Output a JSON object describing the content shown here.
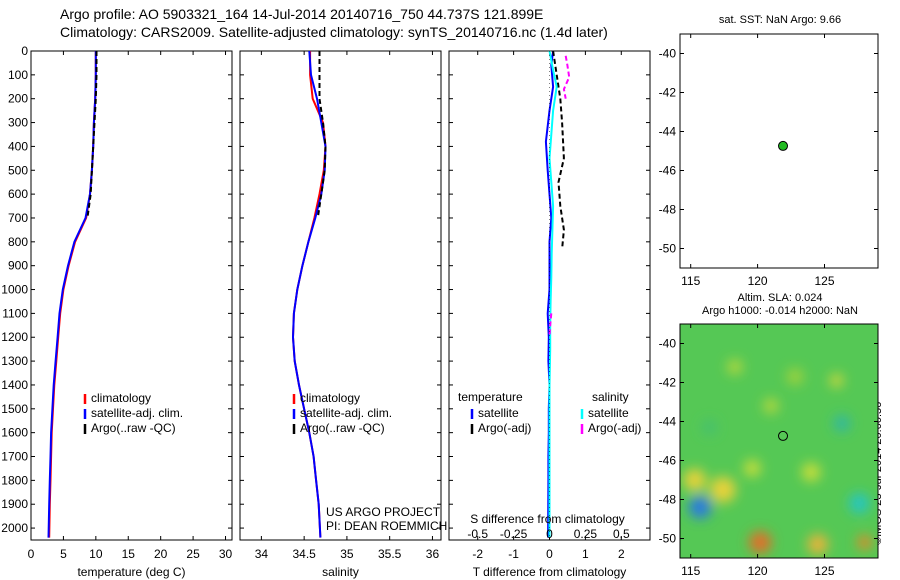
{
  "header": {
    "title1": "Argo profile: AO 5903321_164 14-Jul-2014 20140716_750 44.737S 121.899E",
    "title2": "Climatology: CARS2009. Satellite-adjusted climatology: synTS_20140716.nc (1.4d later)"
  },
  "credits": {
    "line1": "US ARGO PROJECT",
    "line2": "PI: DEAN ROEMMICH"
  },
  "stamp": "©IMOS 23-Jul-2014 20:00:56",
  "colors": {
    "climatology": "#ff0000",
    "satellite": "#0000ff",
    "argo": "#000000",
    "salinity_satellite": "#00ffff",
    "salinity_argo": "#ff00ff",
    "map_marker": "#22bb22"
  },
  "chart_data": [
    {
      "id": "temperature",
      "type": "line",
      "xlabel": "temperature (deg C)",
      "xlim": [
        0,
        31
      ],
      "xticks": [
        0,
        5,
        10,
        15,
        20,
        25,
        30
      ],
      "ylim": [
        2050,
        0
      ],
      "yticks": [
        0,
        100,
        200,
        300,
        400,
        500,
        600,
        700,
        800,
        900,
        1000,
        1100,
        1200,
        1300,
        1400,
        1500,
        1600,
        1700,
        1800,
        1900,
        2000
      ],
      "legend": [
        "climatology",
        "satellite-adj. clim.",
        "Argo(..raw -QC)"
      ],
      "series": [
        {
          "name": "climatology",
          "color": "#ff0000",
          "dash": false,
          "x": [
            10.0,
            10.0,
            9.9,
            9.7,
            9.6,
            9.4,
            9.1,
            8.5,
            6.8,
            5.8,
            5.0,
            4.5,
            4.2,
            3.9,
            3.6,
            3.4,
            3.2,
            3.1,
            3.0,
            2.9,
            2.8
          ],
          "y": [
            0,
            100,
            200,
            300,
            400,
            500,
            600,
            700,
            800,
            900,
            1000,
            1100,
            1200,
            1300,
            1400,
            1500,
            1600,
            1700,
            1800,
            1900,
            2040
          ]
        },
        {
          "name": "satellite-adj. clim.",
          "color": "#0000ff",
          "dash": false,
          "x": [
            10.0,
            10.0,
            9.9,
            9.7,
            9.6,
            9.4,
            9.1,
            8.4,
            6.7,
            5.7,
            4.9,
            4.4,
            4.1,
            3.8,
            3.5,
            3.3,
            3.1,
            3.0,
            2.9,
            2.8,
            2.7
          ],
          "y": [
            0,
            100,
            200,
            300,
            400,
            500,
            600,
            700,
            800,
            900,
            1000,
            1100,
            1200,
            1300,
            1400,
            1500,
            1600,
            1700,
            1800,
            1900,
            2040
          ]
        },
        {
          "name": "Argo(..raw -QC)",
          "color": "#000000",
          "dash": true,
          "x": [
            10.1,
            10.1,
            10.0,
            9.8,
            9.6,
            9.4,
            9.2,
            8.7
          ],
          "y": [
            0,
            100,
            200,
            300,
            400,
            500,
            600,
            700
          ]
        }
      ]
    },
    {
      "id": "salinity",
      "type": "line",
      "xlabel": "salinity",
      "xlim": [
        33.75,
        36.1
      ],
      "xticks": [
        34,
        34.5,
        35,
        35.5,
        36
      ],
      "ylim": [
        2050,
        0
      ],
      "legend": [
        "climatology",
        "satellite-adj. clim.",
        "Argo(..raw -QC)"
      ],
      "series": [
        {
          "name": "climatology",
          "color": "#ff0000",
          "dash": false,
          "x": [
            34.57,
            34.57,
            34.6,
            34.72,
            34.75,
            34.73,
            34.68,
            34.62,
            34.55,
            34.48,
            34.42,
            34.38,
            34.37,
            34.39,
            34.44,
            34.5,
            34.56,
            34.61,
            34.64,
            34.67,
            34.69
          ],
          "y": [
            0,
            100,
            200,
            300,
            400,
            500,
            600,
            700,
            800,
            900,
            1000,
            1100,
            1200,
            1300,
            1400,
            1500,
            1600,
            1700,
            1800,
            1900,
            2040
          ]
        },
        {
          "name": "satellite-adj. clim.",
          "color": "#0000ff",
          "dash": false,
          "x": [
            34.56,
            34.58,
            34.65,
            34.7,
            34.75,
            34.74,
            34.7,
            34.63,
            34.55,
            34.48,
            34.42,
            34.38,
            34.37,
            34.39,
            34.44,
            34.5,
            34.56,
            34.61,
            34.64,
            34.67,
            34.69
          ],
          "y": [
            0,
            100,
            200,
            300,
            400,
            500,
            600,
            700,
            800,
            900,
            1000,
            1100,
            1200,
            1300,
            1400,
            1500,
            1600,
            1700,
            1800,
            1900,
            2040
          ]
        },
        {
          "name": "Argo(..raw -QC)",
          "color": "#000000",
          "dash": true,
          "x": [
            34.68,
            34.68,
            34.68,
            34.72,
            34.75,
            34.74,
            34.7,
            34.66
          ],
          "y": [
            0,
            100,
            200,
            300,
            400,
            500,
            600,
            700
          ]
        }
      ]
    },
    {
      "id": "difference",
      "type": "line",
      "xlabel": "T difference from climatology",
      "xlabel_top": "S difference from climatology",
      "xlim": [
        -2.8,
        2.8
      ],
      "xticks": [
        -2,
        -1,
        0,
        1,
        2
      ],
      "top_ticks": [
        "-0.5",
        "-0.25",
        "0",
        "0.25",
        "0.5"
      ],
      "ylim": [
        2050,
        0
      ],
      "legend_groups": [
        {
          "title": "temperature",
          "items": [
            "satellite",
            "Argo(-adj)"
          ]
        },
        {
          "title": "salinity",
          "items": [
            "satellite",
            "Argo(-adj)"
          ]
        }
      ],
      "series": [
        {
          "name": "temperature satellite",
          "color": "#0000ff",
          "dash": false,
          "x": [
            0.1,
            0.05,
            0.1,
            0.0,
            -0.1,
            -0.05,
            0.0,
            0.05,
            0.0,
            0.0,
            0.0,
            -0.05,
            -0.02,
            -0.03,
            0.0,
            -0.02,
            -0.02,
            -0.03,
            -0.03,
            -0.04
          ],
          "y": [
            0,
            60,
            150,
            250,
            380,
            500,
            600,
            700,
            800,
            900,
            1000,
            1100,
            1200,
            1300,
            1400,
            1500,
            1600,
            1700,
            1800,
            2040
          ]
        },
        {
          "name": "temperature Argo(-adj)",
          "color": "#000000",
          "dash": true,
          "x": [
            0.1,
            0.2,
            0.3,
            0.35,
            0.4,
            0.25,
            0.3,
            0.4,
            0.35
          ],
          "y": [
            0,
            100,
            200,
            300,
            450,
            550,
            650,
            750,
            830
          ]
        },
        {
          "name": "salinity satellite",
          "color": "#00ffff",
          "dash": false,
          "x": [
            0.0,
            0.1,
            0.2,
            0.1,
            0.05,
            0.0,
            0.05,
            0.1,
            0.08,
            0.06,
            0.05,
            0.03,
            0.02,
            0.02,
            0.0,
            0.0,
            0.0,
            0.0,
            0.0,
            0.0
          ],
          "y": [
            0,
            80,
            150,
            250,
            350,
            450,
            550,
            650,
            750,
            850,
            950,
            1050,
            1150,
            1250,
            1400,
            1500,
            1600,
            1700,
            1800,
            2040
          ]
        },
        {
          "name": "salinity Argo(-adj)",
          "color": "#ff00ff",
          "dash": true,
          "x": [
            0.45,
            0.5,
            0.55,
            0.4,
            0.45
          ],
          "y": [
            20,
            60,
            110,
            160,
            200
          ]
        },
        {
          "name": "salinity Argo(-adj) deep",
          "color": "#ff00ff",
          "dash": true,
          "x": [
            0.05,
            0.02,
            0.0
          ],
          "y": [
            1100,
            1150,
            1200
          ]
        }
      ]
    },
    {
      "id": "sst-map",
      "type": "scatter",
      "title": "sat. SST: NaN Argo: 9.66",
      "xlim": [
        114.2,
        129
      ],
      "xticks": [
        115,
        120,
        125
      ],
      "ylim": [
        -51,
        -39
      ],
      "yticks": [
        -40,
        -42,
        -44,
        -46,
        -48,
        -50
      ],
      "points": [
        {
          "x": 121.9,
          "y": -44.74
        }
      ]
    },
    {
      "id": "sla-map",
      "type": "heatmap",
      "title1": "Altim. SLA: 0.024",
      "title2": "Argo h1000: -0.014 h2000: NaN",
      "xlim": [
        114.2,
        129
      ],
      "xticks": [
        115,
        120,
        125
      ],
      "ylim": [
        -51,
        -39
      ],
      "yticks": [
        -40,
        -42,
        -44,
        -46,
        -48,
        -50
      ],
      "points": [
        {
          "x": 121.9,
          "y": -44.74
        }
      ],
      "blobs": [
        {
          "x": 115.7,
          "y": -48.4,
          "r": 1.2,
          "color": "#2a7ae0"
        },
        {
          "x": 127.6,
          "y": -48.2,
          "r": 1.1,
          "color": "#28c6c0"
        },
        {
          "x": 117.4,
          "y": -47.5,
          "r": 1.4,
          "color": "#e6d23a"
        },
        {
          "x": 115.3,
          "y": -47.0,
          "r": 1.2,
          "color": "#e6d23a"
        },
        {
          "x": 120.2,
          "y": -50.2,
          "r": 1.2,
          "color": "#e0702a"
        },
        {
          "x": 124.5,
          "y": -50.3,
          "r": 1.1,
          "color": "#e8b43a"
        },
        {
          "x": 128.0,
          "y": -50.2,
          "r": 0.8,
          "color": "#e08a2a"
        },
        {
          "x": 124.0,
          "y": -46.6,
          "r": 1.0,
          "color": "#c9de3a"
        },
        {
          "x": 119.6,
          "y": -46.4,
          "r": 0.9,
          "color": "#c9de3a"
        },
        {
          "x": 122.8,
          "y": -41.7,
          "r": 0.9,
          "color": "#9fd23c"
        },
        {
          "x": 126.3,
          "y": -44.1,
          "r": 0.9,
          "color": "#30b8a0"
        },
        {
          "x": 118.3,
          "y": -41.2,
          "r": 0.8,
          "color": "#b7d83c"
        },
        {
          "x": 121.0,
          "y": -43.2,
          "r": 0.8,
          "color": "#b7d83c"
        },
        {
          "x": 125.9,
          "y": -41.9,
          "r": 0.7,
          "color": "#d8d83a"
        },
        {
          "x": 116.4,
          "y": -44.3,
          "r": 0.8,
          "color": "#45c070"
        }
      ]
    }
  ]
}
